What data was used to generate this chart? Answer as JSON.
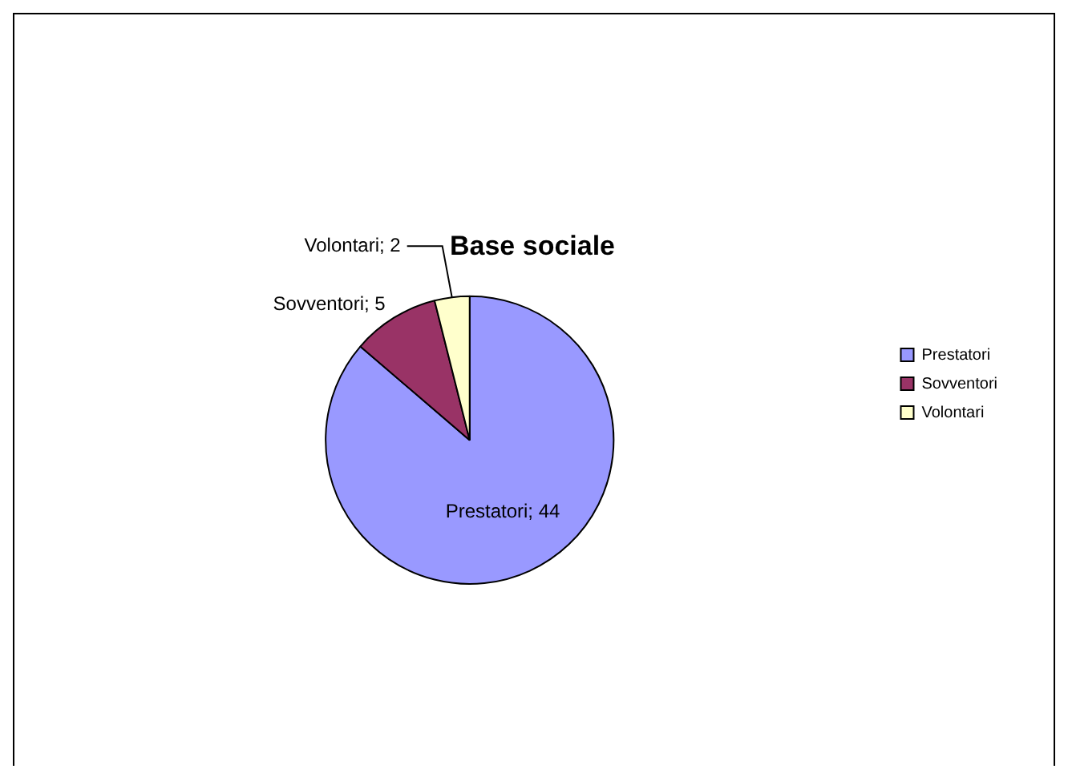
{
  "chart_data": {
    "type": "pie",
    "title": "Base sociale",
    "categories": [
      "Prestatori",
      "Sovventori",
      "Volontari"
    ],
    "values": [
      44,
      5,
      2
    ],
    "value_labels": [
      "Prestatori; 44",
      "Sovventori; 5",
      "Volontari; 2"
    ],
    "colors": [
      "#9999ff",
      "#993366",
      "#ffffcc"
    ],
    "legend": "right"
  }
}
